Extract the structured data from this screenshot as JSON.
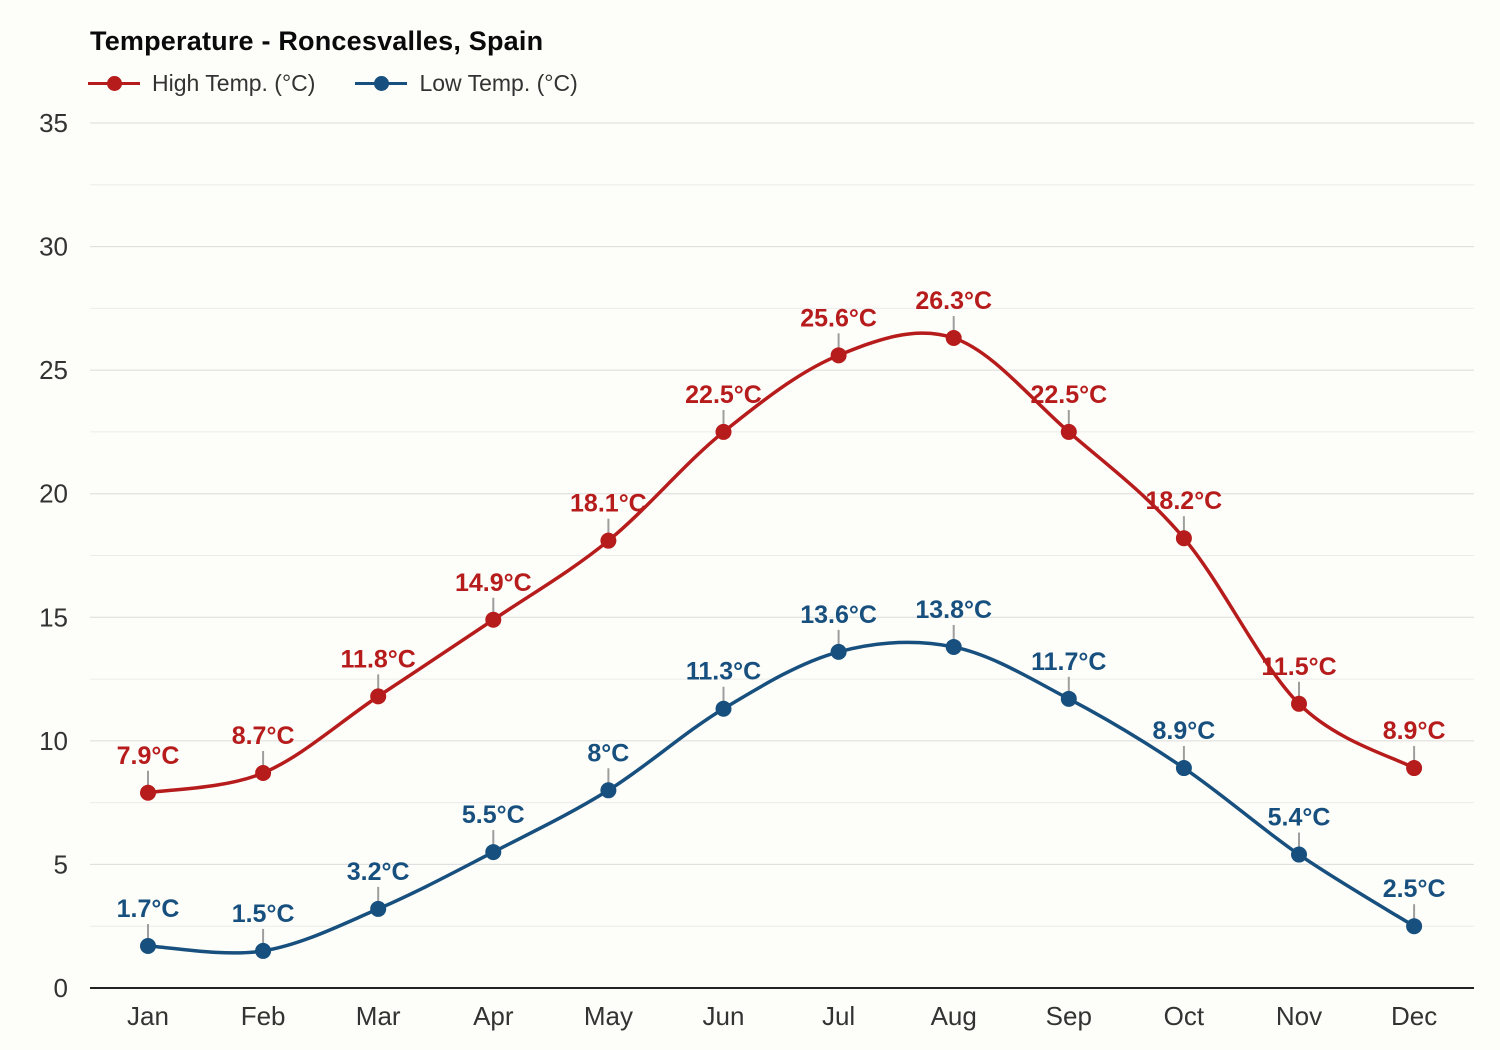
{
  "header": {
    "title": "Temperature - Roncesvalles, Spain"
  },
  "legend": [
    {
      "label": "High Temp. (°C)",
      "color": "#b71c1c"
    },
    {
      "label": "Low Temp. (°C)",
      "color": "#17507e"
    }
  ],
  "axis": {
    "y_ticks": [
      0,
      5,
      10,
      15,
      20,
      25,
      30,
      35
    ],
    "x_labels": [
      "Jan",
      "Feb",
      "Mar",
      "Apr",
      "May",
      "Jun",
      "Jul",
      "Aug",
      "Sep",
      "Oct",
      "Nov",
      "Dec"
    ]
  },
  "chart_data": {
    "type": "line",
    "title": "Temperature - Roncesvalles, Spain",
    "categories": [
      "Jan",
      "Feb",
      "Mar",
      "Apr",
      "May",
      "Jun",
      "Jul",
      "Aug",
      "Sep",
      "Oct",
      "Nov",
      "Dec"
    ],
    "series": [
      {
        "name": "High Temp. (°C)",
        "color": "#b71c1c",
        "values": [
          7.9,
          8.7,
          11.8,
          14.9,
          18.1,
          22.5,
          25.6,
          26.3,
          22.5,
          18.2,
          11.5,
          8.9
        ]
      },
      {
        "name": "Low Temp. (°C)",
        "color": "#17507e",
        "values": [
          1.7,
          1.5,
          3.2,
          5.5,
          8,
          11.3,
          13.6,
          13.8,
          11.7,
          8.9,
          5.4,
          2.5
        ]
      }
    ],
    "unit": "°C",
    "xlabel": "",
    "ylabel": "",
    "ylim": [
      0,
      35
    ],
    "ytick_step": 5,
    "minor_grid_step": 2.5,
    "grid": true,
    "smooth": true,
    "data_labels": true,
    "legend_position": "top-left",
    "colors": {
      "major_gridline": "#dcdcdc",
      "minor_gridline": "#ececec",
      "axis_line": "#222222",
      "tick_label": "#333333",
      "label_connector": "#9e9e9e",
      "background": "#fdfdf9"
    }
  }
}
